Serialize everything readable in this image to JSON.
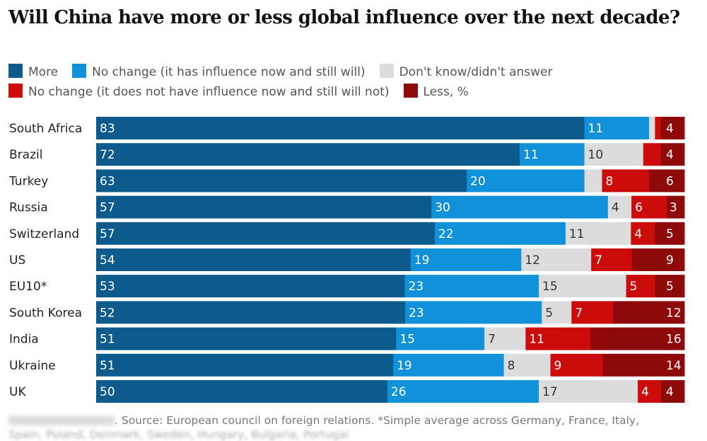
{
  "chart_data": {
    "type": "bar",
    "orientation": "horizontal",
    "stacked": true,
    "title": "Will China have more or less global influence over the next decade?",
    "legend_placement": "top",
    "series": [
      {
        "name": "More",
        "color": "#0c5b8c"
      },
      {
        "name": "No change (it has influence now and still will)",
        "color": "#1091d9"
      },
      {
        "name": "Don't know/didn't answer",
        "color": "#dcdcdc"
      },
      {
        "name": "No change (it does not have influence now and still will not)",
        "color": "#cc0b0b"
      },
      {
        "name": "Less, %",
        "color": "#8e0a0a"
      }
    ],
    "categories": [
      "South Africa",
      "Brazil",
      "Turkey",
      "Russia",
      "Switzerland",
      "US",
      "EU10*",
      "South Korea",
      "India",
      "Ukraine",
      "UK"
    ],
    "values": [
      [
        83,
        11,
        1,
        1,
        4
      ],
      [
        72,
        11,
        10,
        3,
        4
      ],
      [
        63,
        20,
        3,
        8,
        6
      ],
      [
        57,
        30,
        4,
        6,
        3
      ],
      [
        57,
        22,
        11,
        4,
        5
      ],
      [
        54,
        19,
        12,
        7,
        9
      ],
      [
        53,
        23,
        15,
        5,
        5
      ],
      [
        52,
        23,
        5,
        7,
        12
      ],
      [
        51,
        15,
        7,
        11,
        16
      ],
      [
        51,
        19,
        8,
        9,
        14
      ],
      [
        50,
        26,
        17,
        4,
        4
      ]
    ],
    "labeled": [
      [
        true,
        true,
        false,
        false,
        true
      ],
      [
        true,
        true,
        true,
        false,
        true
      ],
      [
        true,
        true,
        false,
        true,
        true
      ],
      [
        true,
        true,
        true,
        true,
        true
      ],
      [
        true,
        true,
        true,
        true,
        true
      ],
      [
        true,
        true,
        true,
        true,
        true
      ],
      [
        true,
        true,
        true,
        true,
        true
      ],
      [
        true,
        true,
        true,
        true,
        true
      ],
      [
        true,
        true,
        true,
        true,
        true
      ],
      [
        true,
        true,
        true,
        true,
        true
      ],
      [
        true,
        true,
        true,
        true,
        true
      ]
    ],
    "grid": false,
    "xlim": [
      0,
      100
    ]
  },
  "footer": {
    "source": ". Source: European council on foreign relations. *Simple average across Germany, France, Italy,",
    "source_line2": "Spain, Poland, Denmark, Sweden, Hungary, Bulgaria, Portugal"
  }
}
